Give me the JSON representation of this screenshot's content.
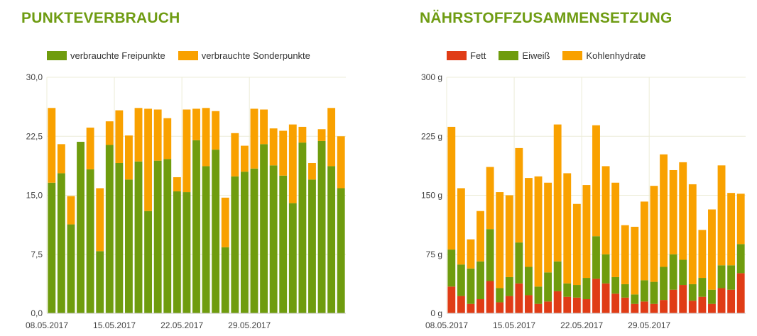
{
  "colors": {
    "freipunkte": "#6f9c0e",
    "sonderpunkte": "#f9a100",
    "fett": "#e03c16",
    "eiweiss": "#6f9c0e",
    "kohlenhydrate": "#f9a100",
    "title": "#6f9c13",
    "grid": "#ececd8"
  },
  "chart_data": [
    {
      "type": "bar",
      "stacked": true,
      "title": "PUNKTEVERBRAUCH",
      "ylim": [
        0,
        30
      ],
      "yticks": [
        "0,0",
        "7,5",
        "15,0",
        "22,5",
        "30,0"
      ],
      "xticks": [
        "08.05.2017",
        "15.05.2017",
        "22.05.2017",
        "29.05.2017"
      ],
      "grid": true,
      "legend_position": "top-left",
      "series": [
        {
          "name": "verbrauchte Freipunkte",
          "values": [
            16.6,
            17.8,
            11.3,
            21.8,
            18.3,
            7.9,
            21.4,
            19.1,
            17.0,
            19.3,
            13.0,
            19.4,
            19.6,
            15.5,
            15.4,
            22.0,
            18.7,
            20.8,
            8.4,
            17.4,
            18.0,
            18.4,
            21.5,
            18.8,
            17.5,
            14.0,
            21.7,
            17.0,
            21.9,
            18.7,
            15.9
          ]
        },
        {
          "name": "verbrauchte Sonderpunkte",
          "values": [
            9.5,
            3.7,
            3.6,
            0,
            5.3,
            8.0,
            3.0,
            6.7,
            5.6,
            6.8,
            13.0,
            6.5,
            5.2,
            1.8,
            10.5,
            4.0,
            7.4,
            4.9,
            6.3,
            5.5,
            3.3,
            7.6,
            4.4,
            4.7,
            5.7,
            10.0,
            2.0,
            2.1,
            1.5,
            7.4,
            6.6
          ]
        }
      ]
    },
    {
      "type": "bar",
      "stacked": true,
      "title": "NÄHRSTOFFZUSAMMENSETZUNG",
      "ylim": [
        0,
        300
      ],
      "yticks": [
        "0 g",
        "75 g",
        "150 g",
        "225 g",
        "300 g"
      ],
      "xticks": [
        "08.05.2017",
        "15.05.2017",
        "22.05.2017",
        "29.05.2017"
      ],
      "grid": true,
      "legend_position": "top-left",
      "series": [
        {
          "name": "Fett",
          "values": [
            34,
            22,
            12,
            18,
            41,
            14,
            22,
            38,
            23,
            12,
            15,
            28,
            21,
            20,
            18,
            44,
            38,
            25,
            20,
            12,
            15,
            12,
            17,
            30,
            36,
            16,
            21,
            12,
            32,
            30,
            51
          ]
        },
        {
          "name": "Eiweiß",
          "values": [
            47,
            40,
            45,
            48,
            66,
            18,
            24,
            52,
            36,
            22,
            37,
            38,
            17,
            16,
            27,
            54,
            37,
            21,
            17,
            12,
            27,
            28,
            42,
            45,
            32,
            21,
            24,
            18,
            29,
            31,
            37
          ]
        },
        {
          "name": "Kohlenhydrate",
          "values": [
            156,
            97,
            37,
            64,
            79,
            122,
            104,
            120,
            113,
            140,
            114,
            174,
            140,
            103,
            118,
            141,
            112,
            120,
            75,
            86,
            100,
            122,
            143,
            107,
            124,
            127,
            61,
            102,
            127,
            92,
            64
          ]
        }
      ]
    }
  ]
}
